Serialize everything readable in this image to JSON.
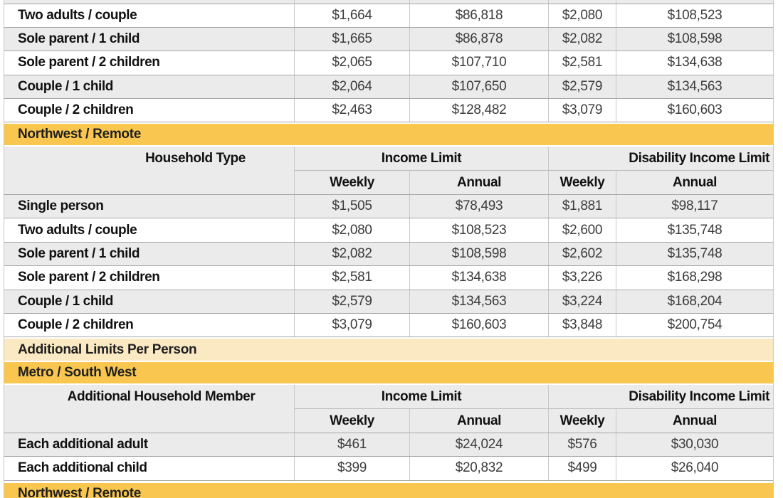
{
  "palette": {
    "gold_banner": "#F9C750",
    "pale_banner": "#FBE9C3",
    "stripe_gray": "#EBEBEB",
    "horizontal_border": "#A6A6A6",
    "vertical_border": "#C9C9C9",
    "label_text": "#111111",
    "number_text": "#3C3C3C"
  },
  "metro_top_table": {
    "rows": [
      {
        "label": "Two adults / couple",
        "values": [
          "$1,664",
          "$86,818",
          "$2,080",
          "$108,523"
        ]
      },
      {
        "label": "Sole parent / 1 child",
        "values": [
          "$1,665",
          "$86,878",
          "$2,082",
          "$108,598"
        ]
      },
      {
        "label": "Sole parent / 2 children",
        "values": [
          "$2,065",
          "$107,710",
          "$2,581",
          "$134,638"
        ]
      },
      {
        "label": "Couple / 1 child",
        "values": [
          "$2,064",
          "$107,650",
          "$2,579",
          "$134,563"
        ]
      },
      {
        "label": "Couple / 2 children",
        "values": [
          "$2,463",
          "$128,482",
          "$3,079",
          "$160,603"
        ]
      }
    ]
  },
  "northwest_section": {
    "banner": "Northwest / Remote",
    "header": {
      "col1": "Household Type",
      "group1": "Income Limit",
      "group2": "Disability Income Limit",
      "sub": [
        "Weekly",
        "Annual",
        "Weekly",
        "Annual"
      ]
    },
    "rows": [
      {
        "label": "Single person",
        "values": [
          "$1,505",
          "$78,493",
          "$1,881",
          "$98,117"
        ]
      },
      {
        "label": "Two adults / couple",
        "values": [
          "$2,080",
          "$108,523",
          "$2,600",
          "$135,748"
        ]
      },
      {
        "label": "Sole parent / 1 child",
        "values": [
          "$2,082",
          "$108,598",
          "$2,602",
          "$135,748"
        ]
      },
      {
        "label": "Sole parent / 2 children",
        "values": [
          "$2,581",
          "$134,638",
          "$3,226",
          "$168,298"
        ]
      },
      {
        "label": "Couple / 1 child",
        "values": [
          "$2,579",
          "$134,563",
          "$3,224",
          "$168,204"
        ]
      },
      {
        "label": "Couple / 2 children",
        "values": [
          "$3,079",
          "$160,603",
          "$3,848",
          "$200,754"
        ]
      }
    ]
  },
  "additional_limits": {
    "banner": "Additional Limits Per Person",
    "metro_banner": "Metro / South West",
    "header": {
      "col1": "Additional Household Member",
      "group1": "Income Limit",
      "group2": "Disability Income Limit",
      "sub": [
        "Weekly",
        "Annual",
        "Weekly",
        "Annual"
      ]
    },
    "rows": [
      {
        "label": "Each additional adult",
        "values": [
          "$461",
          "$24,024",
          "$576",
          "$30,030"
        ]
      },
      {
        "label": "Each additional child",
        "values": [
          "$399",
          "$20,832",
          "$499",
          "$26,040"
        ]
      }
    ],
    "northwest_banner": "Northwest / Remote"
  }
}
